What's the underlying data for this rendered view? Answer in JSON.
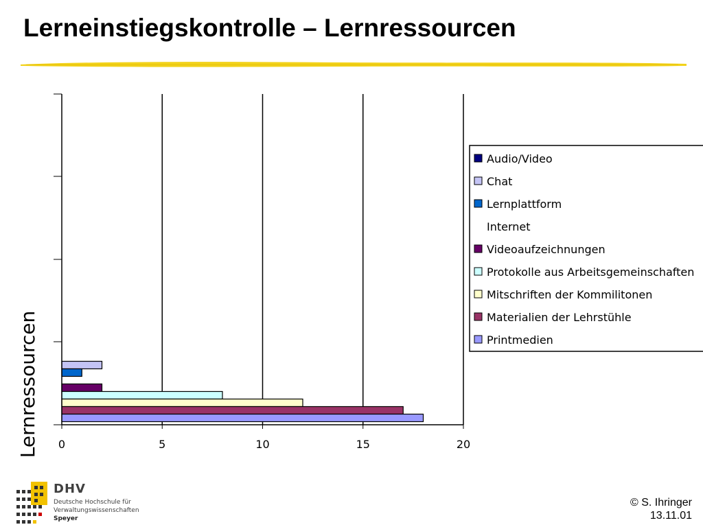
{
  "slide": {
    "title": "Lerneinstiegskontrolle – Lernressourcen"
  },
  "chart_data": {
    "type": "bar",
    "orientation": "horizontal",
    "title": "",
    "xlabel": "",
    "ylabel": "Lernressourcen",
    "xlim": [
      0,
      20
    ],
    "x_ticks": [
      "0",
      "5",
      "10",
      "15",
      "20"
    ],
    "grid": "vertical",
    "legend_position": "right",
    "series": [
      {
        "name": "Audio/Video",
        "value": 0,
        "color": "#000080"
      },
      {
        "name": "Chat",
        "value": 2,
        "color": "#c4c4f5"
      },
      {
        "name": "Lernplattform",
        "value": 1,
        "color": "#0066cc"
      },
      {
        "name": "Internet",
        "value": 0,
        "color": "#ffffff",
        "no_swatch": true
      },
      {
        "name": "Videoaufzeichnungen",
        "value": 2,
        "color": "#660066"
      },
      {
        "name": "Protokolle aus Arbeitsgemeinschaften",
        "value": 8,
        "color": "#ccffff"
      },
      {
        "name": "Mitschriften der Kommilitonen",
        "value": 12,
        "color": "#ffffcc"
      },
      {
        "name": "Materialien der Lehrstühle",
        "value": 17,
        "color": "#993366"
      },
      {
        "name": "Printmedien",
        "value": 18,
        "color": "#9999ff"
      }
    ]
  },
  "logo": {
    "name": "DHV",
    "line1": "Deutsche Hochschule für",
    "line2": "Verwaltungswissenschaften",
    "line3": "Speyer"
  },
  "footer": {
    "copyright": "© S. Ihringer",
    "date": "13.11.01"
  },
  "colors": {
    "accent_yellow": "#f2d21a"
  }
}
